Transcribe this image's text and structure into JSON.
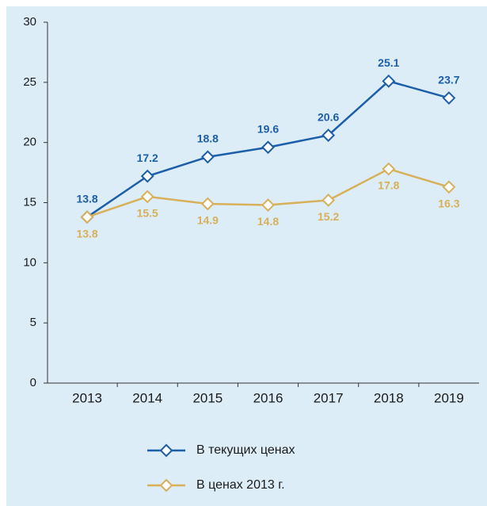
{
  "chart_data": {
    "type": "line",
    "categories": [
      "2013",
      "2014",
      "2015",
      "2016",
      "2017",
      "2018",
      "2019"
    ],
    "series": [
      {
        "name": "В текущих ценах",
        "color": "#1c5ea8",
        "values": [
          13.8,
          17.2,
          18.8,
          19.6,
          20.6,
          25.1,
          23.7
        ],
        "label_position": "above"
      },
      {
        "name": "В ценах 2013 г.",
        "color": "#d8b05a",
        "values": [
          13.8,
          15.5,
          14.9,
          14.8,
          15.2,
          17.8,
          16.3
        ],
        "label_position": "below"
      }
    ],
    "ylim": [
      0,
      30
    ],
    "yticks": [
      0,
      5,
      10,
      15,
      20,
      25,
      30
    ],
    "grid": false,
    "legend": "bottom"
  }
}
